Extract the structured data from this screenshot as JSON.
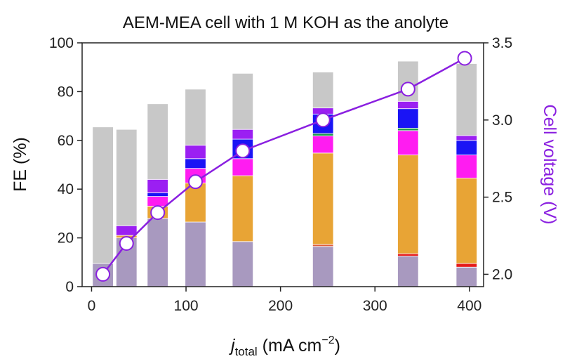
{
  "chart_data": {
    "type": "bar",
    "title": "AEM-MEA cell with 1 M KOH as the anolyte",
    "xlabel": {
      "main": "j",
      "sub": "total",
      "unit": " (mA cm",
      "sup": "−2",
      "close": ")"
    },
    "ylabel": "FE (%)",
    "y2label": "Cell voltage (V)",
    "xlim": [
      -10,
      415
    ],
    "ylim": [
      0,
      100
    ],
    "y2lim": [
      1.92,
      3.5
    ],
    "xticks": [
      0,
      100,
      200,
      300,
      400
    ],
    "yticks": [
      0,
      20,
      40,
      60,
      80,
      100
    ],
    "y2ticks": [
      "2.0",
      "2.5",
      "3.0",
      "3.5"
    ],
    "bar_width": 22,
    "bars": [
      {
        "x": 12,
        "segments": [
          {
            "value": 9.5,
            "color": "#a899bf"
          },
          {
            "value": 56,
            "color": "#c8c8c8"
          }
        ]
      },
      {
        "x": 37,
        "segments": [
          {
            "value": 20,
            "color": "#a899bf"
          },
          {
            "value": 1,
            "color": "#e8a435"
          },
          {
            "value": 4,
            "color": "#9b1ff2"
          },
          {
            "value": 39.5,
            "color": "#c8c8c8"
          }
        ]
      },
      {
        "x": 70,
        "segments": [
          {
            "value": 28,
            "color": "#a899bf"
          },
          {
            "value": 5,
            "color": "#e8a435"
          },
          {
            "value": 4,
            "color": "#ff1cf1"
          },
          {
            "value": 1.5,
            "color": "#1a14f5"
          },
          {
            "value": 5.5,
            "color": "#9b1ff2"
          },
          {
            "value": 31,
            "color": "#c8c8c8"
          }
        ]
      },
      {
        "x": 110,
        "segments": [
          {
            "value": 26.5,
            "color": "#a899bf"
          },
          {
            "value": 16,
            "color": "#e8a435"
          },
          {
            "value": 6,
            "color": "#ff1cf1"
          },
          {
            "value": 4,
            "color": "#1a14f5"
          },
          {
            "value": 5.5,
            "color": "#9b1ff2"
          },
          {
            "value": 23,
            "color": "#c8c8c8"
          }
        ]
      },
      {
        "x": 160,
        "segments": [
          {
            "value": 18.5,
            "color": "#a899bf"
          },
          {
            "value": 27,
            "color": "#e8a435"
          },
          {
            "value": 7,
            "color": "#ff1cf1"
          },
          {
            "value": 8,
            "color": "#1a14f5"
          },
          {
            "value": 4,
            "color": "#9b1ff2"
          },
          {
            "value": 23,
            "color": "#c8c8c8"
          }
        ]
      },
      {
        "x": 245,
        "segments": [
          {
            "value": 16.5,
            "color": "#a899bf"
          },
          {
            "value": 0.8,
            "color": "#e05a3a"
          },
          {
            "value": 37.5,
            "color": "#e8a435"
          },
          {
            "value": 7,
            "color": "#ff1cf1"
          },
          {
            "value": 1,
            "color": "#1f9a4a"
          },
          {
            "value": 8,
            "color": "#1a14f5"
          },
          {
            "value": 2.5,
            "color": "#9b1ff2"
          },
          {
            "value": 14.7,
            "color": "#c8c8c8"
          }
        ]
      },
      {
        "x": 335,
        "segments": [
          {
            "value": 12.5,
            "color": "#a899bf"
          },
          {
            "value": 1,
            "color": "#e51b1b"
          },
          {
            "value": 40.5,
            "color": "#e8a435"
          },
          {
            "value": 10,
            "color": "#ff1cf1"
          },
          {
            "value": 1,
            "color": "#1f9a4a"
          },
          {
            "value": 8,
            "color": "#1a14f5"
          },
          {
            "value": 3,
            "color": "#9b1ff2"
          },
          {
            "value": 16.5,
            "color": "#c8c8c8"
          }
        ]
      },
      {
        "x": 397,
        "segments": [
          {
            "value": 8,
            "color": "#a899bf"
          },
          {
            "value": 1.5,
            "color": "#e51b1b"
          },
          {
            "value": 35,
            "color": "#e8a435"
          },
          {
            "value": 9.5,
            "color": "#ff1cf1"
          },
          {
            "value": 6,
            "color": "#1a14f5"
          },
          {
            "value": 2,
            "color": "#9b1ff2"
          },
          {
            "value": 29.5,
            "color": "#c8c8c8"
          }
        ]
      }
    ],
    "voltage": {
      "color": "#8a1fe0",
      "x": [
        12,
        37,
        70,
        110,
        160,
        245,
        335,
        395
      ],
      "y": [
        2.0,
        2.2,
        2.4,
        2.6,
        2.8,
        3.0,
        3.2,
        3.4
      ]
    }
  }
}
